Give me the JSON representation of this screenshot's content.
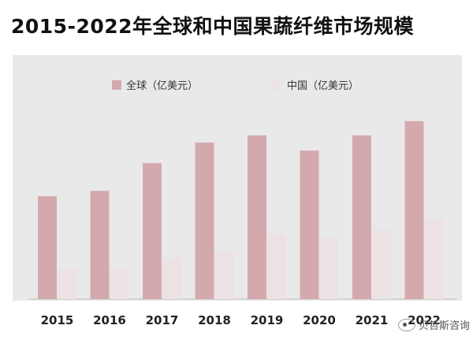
{
  "title": "2015-2022年全球和中国果蔬纤维市场规模",
  "watermark": "贝哲斯咨询",
  "chart_data": {
    "type": "bar",
    "categories": [
      "2015",
      "2016",
      "2017",
      "2018",
      "2019",
      "2020",
      "2021",
      "2022"
    ],
    "series": [
      {
        "name": "全球（亿美元）",
        "color": "#d4a9ae",
        "values": [
          11.5,
          12.1,
          15.2,
          17.5,
          18.3,
          16.6,
          18.3,
          19.9
        ]
      },
      {
        "name": "中国（亿美元）",
        "color": "#ece1e3",
        "values": [
          3.3,
          3.3,
          4.6,
          5.3,
          7.3,
          6.8,
          7.7,
          8.9
        ]
      }
    ],
    "ylim": [
      0,
      22
    ],
    "legend_position": "top",
    "grid": false
  }
}
